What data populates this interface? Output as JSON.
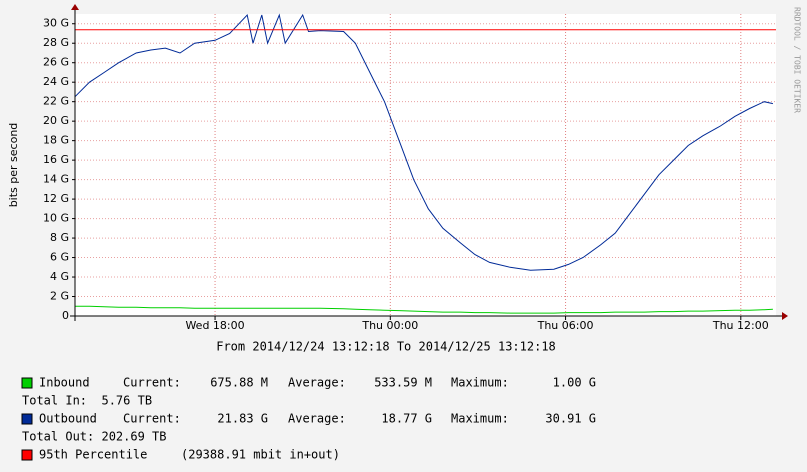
{
  "chart_data": {
    "type": "line",
    "subtitle": "From 2014/12/24 13:12:18 To 2014/12/25 13:12:18",
    "y_label": "bits per second",
    "watermark": "RRDTOOL / TOBI OETIKER",
    "xlim": [
      13.205,
      37.205
    ],
    "xticks": [
      {
        "value": 18,
        "label": "Wed 18:00"
      },
      {
        "value": 24,
        "label": "Thu 00:00"
      },
      {
        "value": 30,
        "label": "Thu 06:00"
      },
      {
        "value": 36,
        "label": "Thu 12:00"
      }
    ],
    "ylim": [
      0,
      31
    ],
    "yticks": [
      0,
      {
        "value": 2,
        "label": "2 G"
      },
      {
        "value": 4,
        "label": "4 G"
      },
      {
        "value": 6,
        "label": "6 G"
      },
      {
        "value": 8,
        "label": "8 G"
      },
      {
        "value": 10,
        "label": "10 G"
      },
      {
        "value": 12,
        "label": "12 G"
      },
      {
        "value": 14,
        "label": "14 G"
      },
      {
        "value": 16,
        "label": "16 G"
      },
      {
        "value": 18,
        "label": "18 G"
      },
      {
        "value": 20,
        "label": "20 G"
      },
      {
        "value": 22,
        "label": "22 G"
      },
      {
        "value": 24,
        "label": "24 G"
      },
      {
        "value": 26,
        "label": "26 G"
      },
      {
        "value": 28,
        "label": "28 G"
      },
      {
        "value": 30,
        "label": "30 G"
      }
    ],
    "grid": true,
    "x": [
      13.2,
      13.7,
      14.2,
      14.7,
      15.3,
      15.8,
      16.3,
      16.8,
      17.3,
      18,
      18.5,
      19.1,
      19.3,
      19.6,
      19.8,
      20.2,
      20.4,
      21,
      21.2,
      21.6,
      22.4,
      22.8,
      23.3,
      23.8,
      24.3,
      24.8,
      25.3,
      25.8,
      26.4,
      26.9,
      27.4,
      28.1,
      28.8,
      29.6,
      30.1,
      30.6,
      31.2,
      31.7,
      32.2,
      32.7,
      33.2,
      33.7,
      34.2,
      34.7,
      35.3,
      35.8,
      36.3,
      36.8,
      37.1
    ],
    "series": [
      {
        "name": "Inbound",
        "color": "#00cf00",
        "values": [
          1,
          1,
          0.95,
          0.9,
          0.9,
          0.85,
          0.85,
          0.85,
          0.8,
          0.8,
          0.8,
          0.8,
          0.8,
          0.8,
          0.8,
          0.8,
          0.8,
          0.8,
          0.8,
          0.8,
          0.75,
          0.7,
          0.65,
          0.6,
          0.55,
          0.5,
          0.45,
          0.4,
          0.4,
          0.35,
          0.35,
          0.3,
          0.3,
          0.3,
          0.35,
          0.35,
          0.35,
          0.4,
          0.4,
          0.4,
          0.45,
          0.45,
          0.5,
          0.5,
          0.55,
          0.6,
          0.6,
          0.65,
          0.7
        ],
        "stats": [
          {
            "label": "Current:",
            "value": "675.88 M"
          },
          {
            "label": "Average:",
            "value": "533.59 M"
          },
          {
            "label": "Maximum:",
            "value": "1.00 G"
          }
        ],
        "total": "Total In:  5.76 TB"
      },
      {
        "name": "Outbound",
        "color": "#002a97",
        "values": [
          22.5,
          24,
          25,
          26,
          27,
          27.3,
          27.5,
          27,
          28,
          28.3,
          29,
          30.9,
          28,
          30.9,
          28,
          30.9,
          28,
          30.9,
          29.2,
          29.3,
          29.2,
          28,
          25,
          22,
          18,
          14,
          11,
          9,
          7.5,
          6.3,
          5.5,
          5,
          4.7,
          4.8,
          5.3,
          6,
          7.3,
          8.5,
          10.5,
          12.5,
          14.5,
          16,
          17.5,
          18.5,
          19.5,
          20.5,
          21.3,
          22,
          21.8
        ],
        "stats": [
          {
            "label": "Current:",
            "value": "21.83 G"
          },
          {
            "label": "Average:",
            "value": "18.77 G"
          },
          {
            "label": "Maximum:",
            "value": "30.91 G"
          }
        ],
        "total": "Total Out: 202.69 TB"
      }
    ],
    "percentile": {
      "name": "95th Percentile",
      "note": "(29388.91 mbit in+out)",
      "value": 29.38891,
      "color": "#ff0000"
    }
  }
}
